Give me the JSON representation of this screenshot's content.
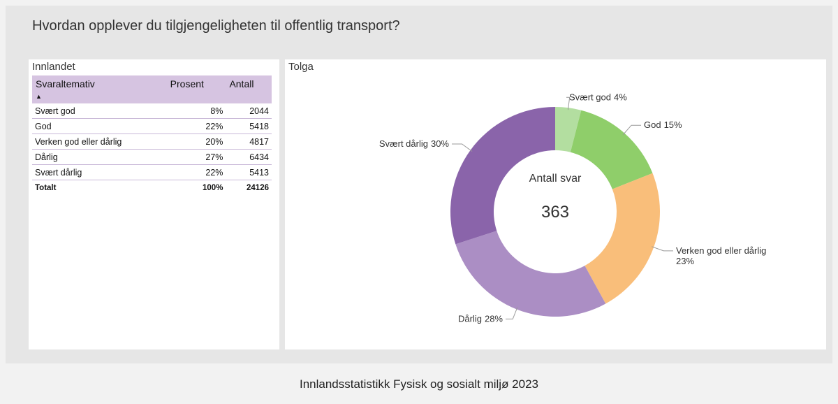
{
  "title": "Hvordan opplever du tilgjengeligheten til offentlig transport?",
  "footer": "Innlandsstatistikk Fysisk og sosialt miljø 2023",
  "table_panel": {
    "title": "Innlandet",
    "header": [
      "Svaraltemativ",
      "Prosent",
      "Antall"
    ],
    "rows": [
      [
        "Svært god",
        "8%",
        "2044"
      ],
      [
        "God",
        "22%",
        "5418"
      ],
      [
        "Verken god eller dårlig",
        "20%",
        "4817"
      ],
      [
        "Dårlig",
        "27%",
        "6434"
      ],
      [
        "Svært dårlig",
        "22%",
        "5413"
      ]
    ],
    "total": [
      "Totalt",
      "100%",
      "24126"
    ]
  },
  "chart_data": {
    "type": "donut",
    "title": "Tolga",
    "categories": [
      "Svært god",
      "God",
      "Verken god eller dårlig",
      "Dårlig",
      "Svært dårlig"
    ],
    "values": [
      4,
      15,
      23,
      28,
      30
    ],
    "value_labels": [
      "4%",
      "15%",
      "23%",
      "28%",
      "30%"
    ],
    "colors": [
      "#b3dea0",
      "#8fce6a",
      "#f9be7a",
      "#ab8ec4",
      "#8a64aa"
    ],
    "center_label": "Antall svar",
    "center_value": "363"
  }
}
